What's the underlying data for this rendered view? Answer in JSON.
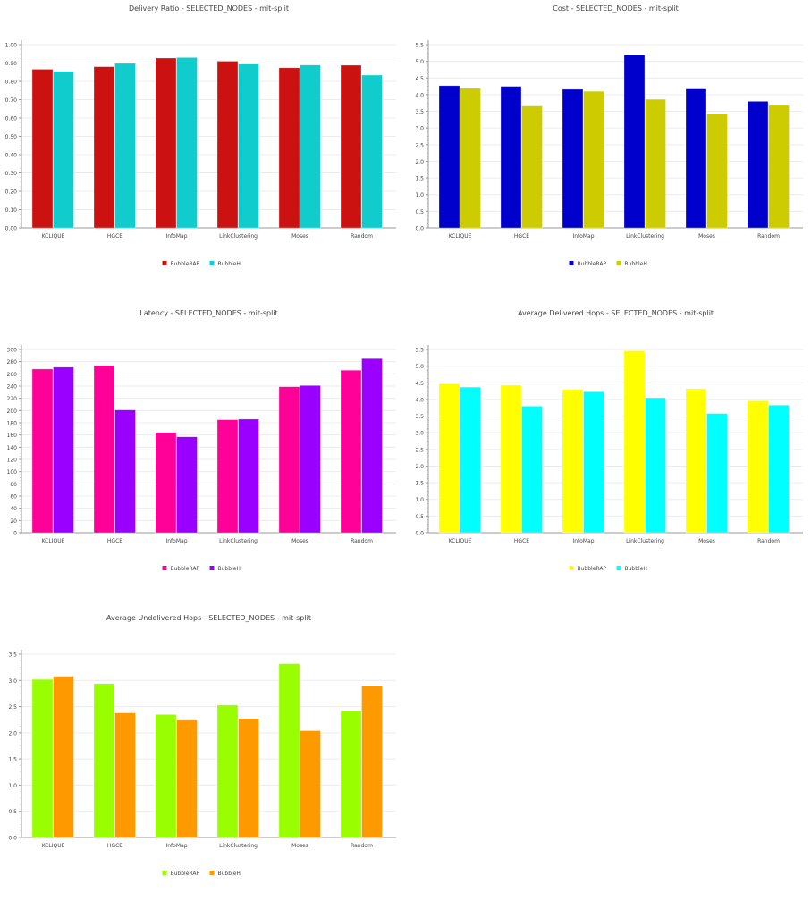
{
  "chart_data": [
    {
      "type": "bar",
      "title": "Delivery Ratio - SELECTED_NODES - mit-split",
      "categories": [
        "KCLIQUE",
        "HGCE",
        "InfoMap",
        "LinkClustering",
        "Moses",
        "Random"
      ],
      "ylim": [
        0,
        1.0
      ],
      "ystep": 0.1,
      "ydecimals": 2,
      "legend": "bottom",
      "series": [
        {
          "name": "BubbleRAP",
          "color": "#cc1111",
          "values": [
            0.866,
            0.88,
            0.927,
            0.91,
            0.874,
            0.888
          ]
        },
        {
          "name": "BubbleH",
          "color": "#11cccc",
          "values": [
            0.855,
            0.898,
            0.93,
            0.894,
            0.889,
            0.834
          ]
        }
      ]
    },
    {
      "type": "bar",
      "title": "Cost - SELECTED_NODES - mit-split",
      "categories": [
        "KCLIQUE",
        "HGCE",
        "InfoMap",
        "LinkClustering",
        "Moses",
        "Random"
      ],
      "ylim": [
        0,
        5.5
      ],
      "ystep": 0.5,
      "ydecimals": 1,
      "legend": "bottom",
      "series": [
        {
          "name": "BubbleRAP",
          "color": "#0000cc",
          "values": [
            4.27,
            4.25,
            4.16,
            5.19,
            4.17,
            3.8
          ]
        },
        {
          "name": "BubbleH",
          "color": "#cccc00",
          "values": [
            4.19,
            3.66,
            4.1,
            3.86,
            3.42,
            3.68
          ]
        }
      ]
    },
    {
      "type": "bar",
      "title": "Latency - SELECTED_NODES - mit-split",
      "categories": [
        "KCLIQUE",
        "HGCE",
        "InfoMap",
        "LinkClustering",
        "Moses",
        "Random"
      ],
      "ylim": [
        0,
        300
      ],
      "ystep": 20,
      "ydecimals": 0,
      "legend": "bottom",
      "series": [
        {
          "name": "BubbleRAP",
          "color": "#ff0099",
          "values": [
            268,
            274,
            164,
            185,
            239,
            266
          ]
        },
        {
          "name": "BubbleH",
          "color": "#9900ff",
          "values": [
            271,
            201,
            157,
            186,
            241,
            285
          ]
        }
      ]
    },
    {
      "type": "bar",
      "title": "Average Delivered Hops - SELECTED_NODES - mit-split",
      "categories": [
        "KCLIQUE",
        "HGCE",
        "InfoMap",
        "LinkClustering",
        "Moses",
        "Random"
      ],
      "ylim": [
        0,
        5.5
      ],
      "ystep": 0.5,
      "ydecimals": 1,
      "legend": "bottom",
      "series": [
        {
          "name": "BubbleRAP",
          "color": "#ffff00",
          "values": [
            4.47,
            4.43,
            4.3,
            5.46,
            4.32,
            3.96
          ]
        },
        {
          "name": "BubbleH",
          "color": "#00ffff",
          "values": [
            4.37,
            3.8,
            4.23,
            4.05,
            3.58,
            3.83
          ]
        }
      ]
    },
    {
      "type": "bar",
      "title": "Average Undelivered Hops - SELECTED_NODES - mit-split",
      "categories": [
        "KCLIQUE",
        "HGCE",
        "InfoMap",
        "LinkClustering",
        "Moses",
        "Random"
      ],
      "ylim": [
        0,
        3.5
      ],
      "ystep": 0.5,
      "ydecimals": 1,
      "legend": "bottom",
      "series": [
        {
          "name": "BubbleRAP",
          "color": "#99ff00",
          "values": [
            3.02,
            2.94,
            2.35,
            2.53,
            3.32,
            2.42
          ]
        },
        {
          "name": "BubbleH",
          "color": "#ff9900",
          "values": [
            3.08,
            2.38,
            2.24,
            2.27,
            2.04,
            2.9
          ]
        }
      ]
    }
  ]
}
